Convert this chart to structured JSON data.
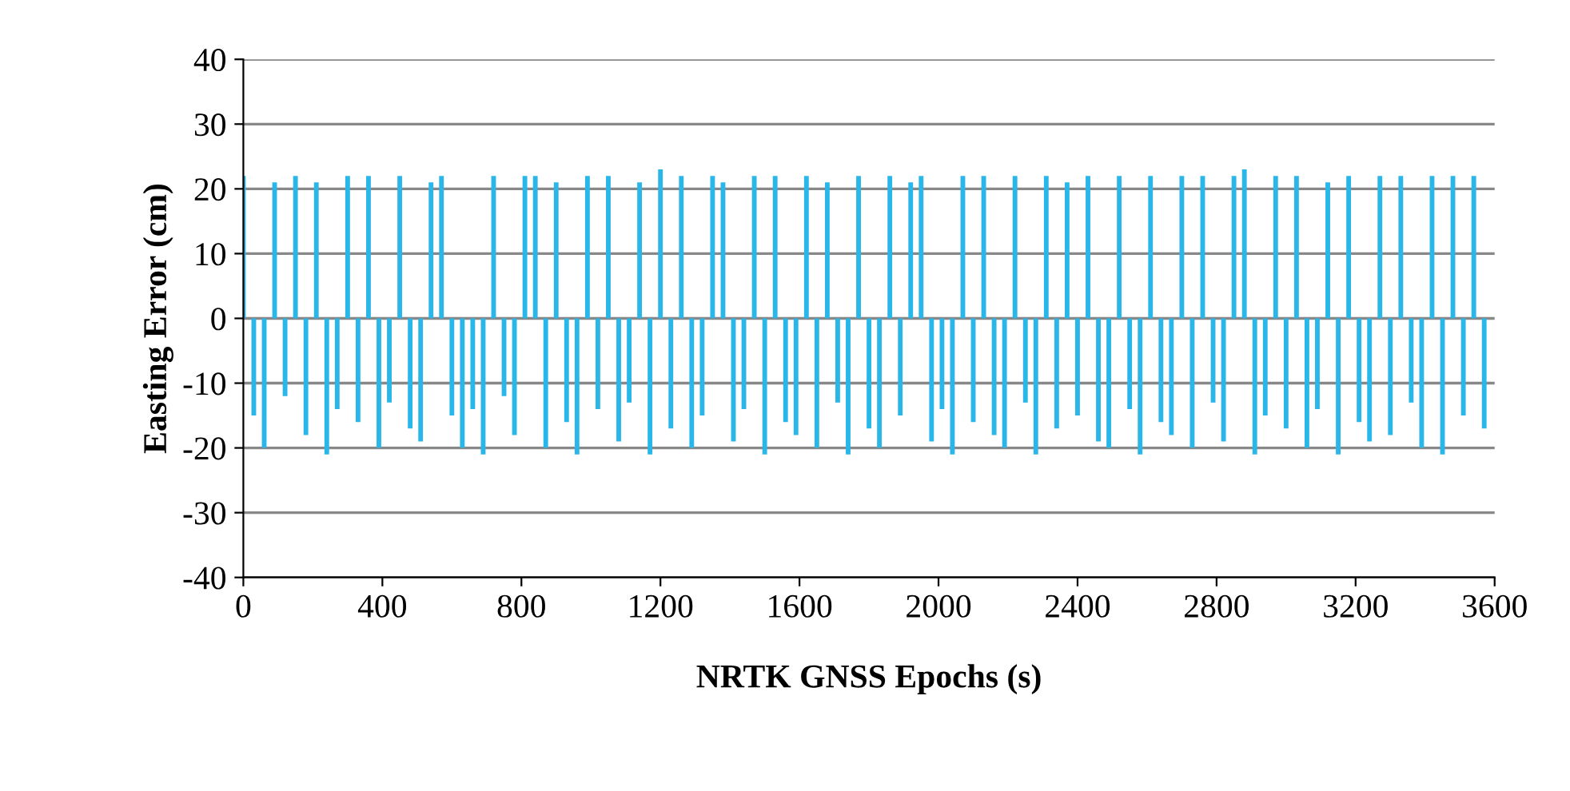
{
  "chart_data": {
    "type": "bar",
    "xlabel": "NRTK GNSS Epochs (s)",
    "ylabel": "Easting Error (cm)",
    "x": [
      0,
      30,
      60,
      90,
      120,
      150,
      180,
      210,
      240,
      270,
      300,
      330,
      360,
      390,
      420,
      450,
      480,
      510,
      540,
      570,
      600,
      630,
      660,
      690,
      720,
      750,
      780,
      810,
      840,
      870,
      900,
      930,
      960,
      990,
      1020,
      1050,
      1080,
      1110,
      1140,
      1170,
      1200,
      1230,
      1260,
      1290,
      1320,
      1350,
      1380,
      1410,
      1440,
      1470,
      1500,
      1530,
      1560,
      1590,
      1620,
      1650,
      1680,
      1710,
      1740,
      1770,
      1800,
      1830,
      1860,
      1890,
      1920,
      1950,
      1980,
      2010,
      2040,
      2070,
      2100,
      2130,
      2160,
      2190,
      2220,
      2250,
      2280,
      2310,
      2340,
      2370,
      2400,
      2430,
      2460,
      2490,
      2520,
      2550,
      2580,
      2610,
      2640,
      2670,
      2700,
      2730,
      2760,
      2790,
      2820,
      2850,
      2880,
      2910,
      2940,
      2970,
      3000,
      3030,
      3060,
      3090,
      3120,
      3150,
      3180,
      3210,
      3240,
      3270,
      3300,
      3330,
      3360,
      3390,
      3420,
      3450,
      3480,
      3510,
      3540,
      3570
    ],
    "values": [
      22,
      -15,
      -20,
      21,
      -12,
      22,
      -18,
      21,
      -21,
      -14,
      22,
      -16,
      22,
      -20,
      -13,
      22,
      -17,
      -19,
      21,
      22,
      -15,
      -20,
      -14,
      -21,
      22,
      -12,
      -18,
      22,
      22,
      -20,
      21,
      -16,
      -21,
      22,
      -14,
      22,
      -19,
      -13,
      21,
      -21,
      23,
      -17,
      22,
      -20,
      -15,
      22,
      21,
      -19,
      -14,
      22,
      -21,
      22,
      -16,
      -18,
      22,
      -20,
      21,
      -13,
      -21,
      22,
      -17,
      -20,
      22,
      -15,
      21,
      22,
      -19,
      -14,
      -21,
      22,
      -16,
      22,
      -18,
      -20,
      22,
      -13,
      -21,
      22,
      -17,
      21,
      -15,
      22,
      -19,
      -20,
      22,
      -14,
      -21,
      22,
      -16,
      -18,
      22,
      -20,
      22,
      -13,
      -19,
      22,
      23,
      -21,
      -15,
      22,
      -17,
      22,
      -20,
      -14,
      21,
      -21,
      22,
      -16,
      -19,
      22,
      -18,
      22,
      -13,
      -20,
      22,
      -21,
      22,
      -15,
      22,
      -17
    ],
    "color": "#29b6e8",
    "xlim": [
      0,
      3600
    ],
    "xticks": [
      0,
      400,
      800,
      1200,
      1600,
      2000,
      2400,
      2800,
      3200,
      3600
    ],
    "ylim": [
      -40,
      40
    ],
    "yticks": [
      -40,
      -30,
      -20,
      -10,
      0,
      10,
      20,
      30,
      40
    ],
    "grid": "y"
  }
}
